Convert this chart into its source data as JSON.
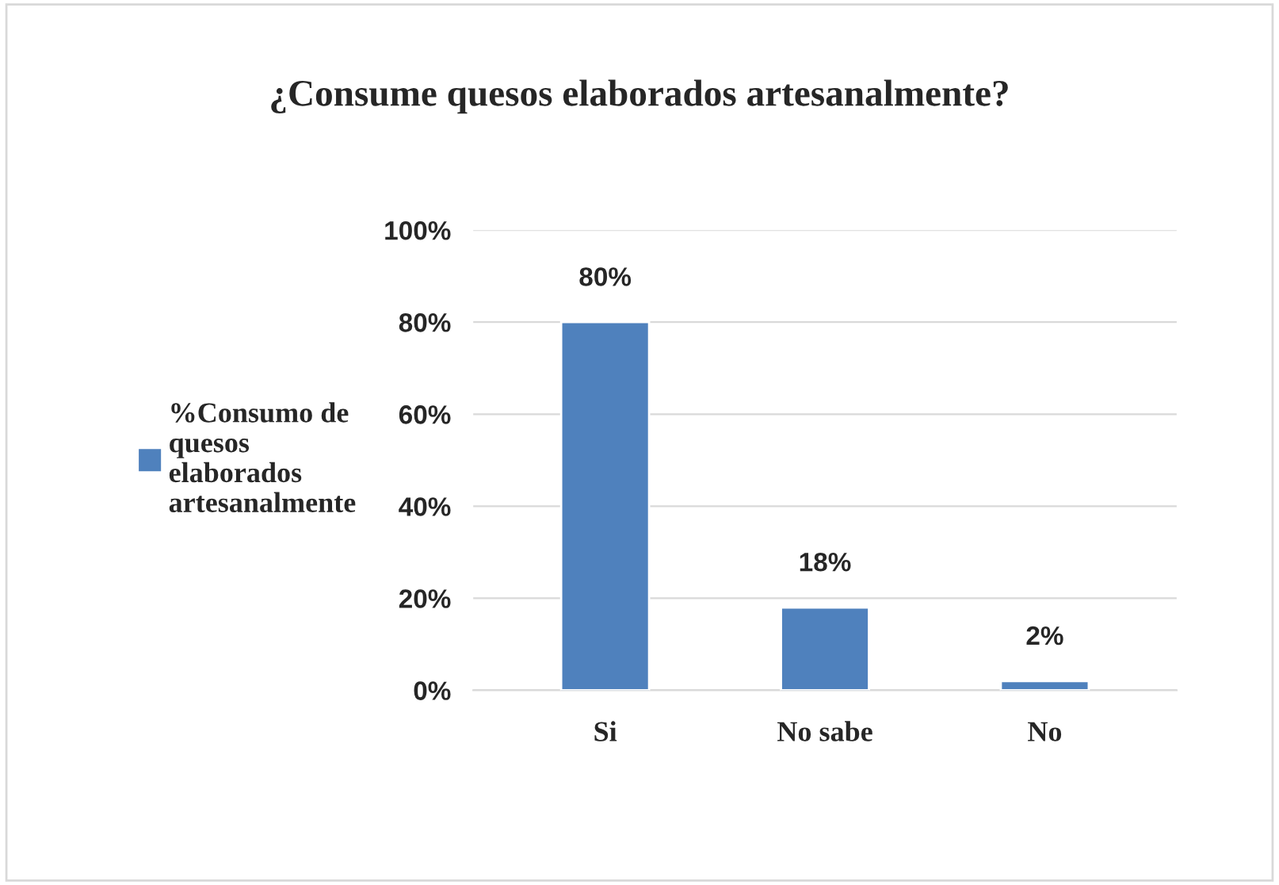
{
  "chart_data": {
    "type": "bar",
    "title": "¿Consume quesos elaborados artesanalmente?",
    "categories": [
      "Si",
      "No sabe",
      "No"
    ],
    "series": [
      {
        "name": "%Consumo de quesos elaborados artesanalmente",
        "color": "#4f81bd",
        "values": [
          80,
          18,
          2
        ],
        "value_labels": [
          "80%",
          "18%",
          "2%"
        ]
      }
    ],
    "ylim": [
      0,
      100
    ],
    "yticks": [
      {
        "value": 0,
        "label": "0%"
      },
      {
        "value": 20,
        "label": "20%"
      },
      {
        "value": 40,
        "label": "40%"
      },
      {
        "value": 60,
        "label": "60%"
      },
      {
        "value": 80,
        "label": "80%"
      },
      {
        "value": 100,
        "label": "100%"
      }
    ],
    "grid": "y",
    "legend": "left"
  }
}
